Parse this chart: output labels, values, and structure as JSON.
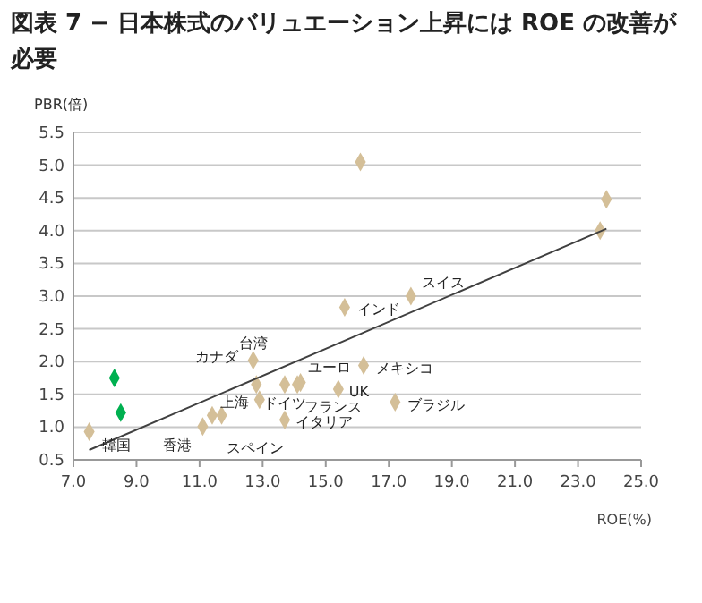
{
  "chart_data": {
    "type": "scatter",
    "title": "図表 7 − 日本株式のバリュエーション上昇には ROE の改善が必要",
    "xlabel": "ROE(%)",
    "ylabel": "PBR(倍)",
    "xlim": [
      7,
      25
    ],
    "xticks": [
      {
        "value": 7,
        "label": "7.0"
      },
      {
        "value": 9,
        "label": "9.0"
      },
      {
        "value": 11,
        "label": "11.0"
      },
      {
        "value": 13,
        "label": "13.0"
      },
      {
        "value": 15,
        "label": "15.0"
      },
      {
        "value": 17,
        "label": "17.0"
      },
      {
        "value": 19,
        "label": "19.0"
      },
      {
        "value": 21,
        "label": "21.0"
      },
      {
        "value": 23,
        "label": "23.0"
      },
      {
        "value": 25,
        "label": "25.0"
      }
    ],
    "ylim": [
      0.5,
      5.5
    ],
    "yticks": [
      0.5,
      {
        "value": 1,
        "label": "1.0"
      },
      1.5,
      {
        "value": 2,
        "label": "2.0"
      },
      2.5,
      {
        "value": 3,
        "label": "3.0"
      },
      3.5,
      {
        "value": 4,
        "label": "4.0"
      },
      4.5,
      {
        "value": 5,
        "label": "5.0"
      },
      5.5
    ],
    "grid": "y",
    "series": [
      {
        "marker": "diamond",
        "x": [
          7.5,
          8.3,
          8.5,
          11.1,
          11.4,
          11.7,
          12.7,
          12.8,
          12.9,
          13.7,
          13.7,
          14.2,
          14.1,
          15.4,
          15.6,
          17.7,
          16.2,
          17.2,
          16.1,
          23.9,
          23.7
        ],
        "values": [
          0.93,
          1.75,
          1.22,
          1.01,
          1.18,
          1.18,
          2.02,
          1.65,
          1.42,
          1.11,
          1.65,
          1.68,
          1.65,
          1.58,
          2.83,
          3.0,
          1.94,
          1.38,
          5.05,
          4.48,
          4.0
        ],
        "colors": [
          "#d4bf98",
          "#00b050",
          "#00b050",
          "#d4bf98",
          "#d4bf98",
          "#d4bf98",
          "#d4bf98",
          "#d4bf98",
          "#d4bf98",
          "#d4bf98",
          "#d4bf98",
          "#d4bf98",
          "#d4bf98",
          "#d4bf98",
          "#d4bf98",
          "#d4bf98",
          "#d4bf98",
          "#d4bf98",
          "#d4bf98",
          "#d4bf98",
          "#d4bf98"
        ]
      },
      {
        "type": "line",
        "color": "#404040",
        "x": [
          7.5,
          23.9
        ],
        "values": [
          0.65,
          4.03
        ]
      }
    ],
    "annotations": [
      {
        "text": "韓国",
        "x": 7.5,
        "y": 0.93
      },
      {
        "text": "香港",
        "x": 11.1,
        "y": 1.01
      },
      {
        "text": "スペイン",
        "x": 11.4,
        "y": 1.18
      },
      {
        "text": "台湾",
        "x": 12.7,
        "y": 2.02
      },
      {
        "text": "カナダ",
        "x": 12.8,
        "y": 1.65
      },
      {
        "text": "上海",
        "x": 12.9,
        "y": 1.42
      },
      {
        "text": "ドイツ",
        "x": 13.7,
        "y": 1.65
      },
      {
        "text": "イタリア",
        "x": 13.7,
        "y": 1.11
      },
      {
        "text": "フランス",
        "x": 14.1,
        "y": 1.65
      },
      {
        "text": "ユーロ",
        "x": 14.2,
        "y": 1.68
      },
      {
        "text": "UK",
        "x": 15.4,
        "y": 1.58
      },
      {
        "text": "インド",
        "x": 15.6,
        "y": 2.83
      },
      {
        "text": "スイス",
        "x": 17.7,
        "y": 3.0
      },
      {
        "text": "メキシコ",
        "x": 16.2,
        "y": 1.94
      },
      {
        "text": "ブラジル",
        "x": 17.2,
        "y": 1.38
      }
    ]
  }
}
